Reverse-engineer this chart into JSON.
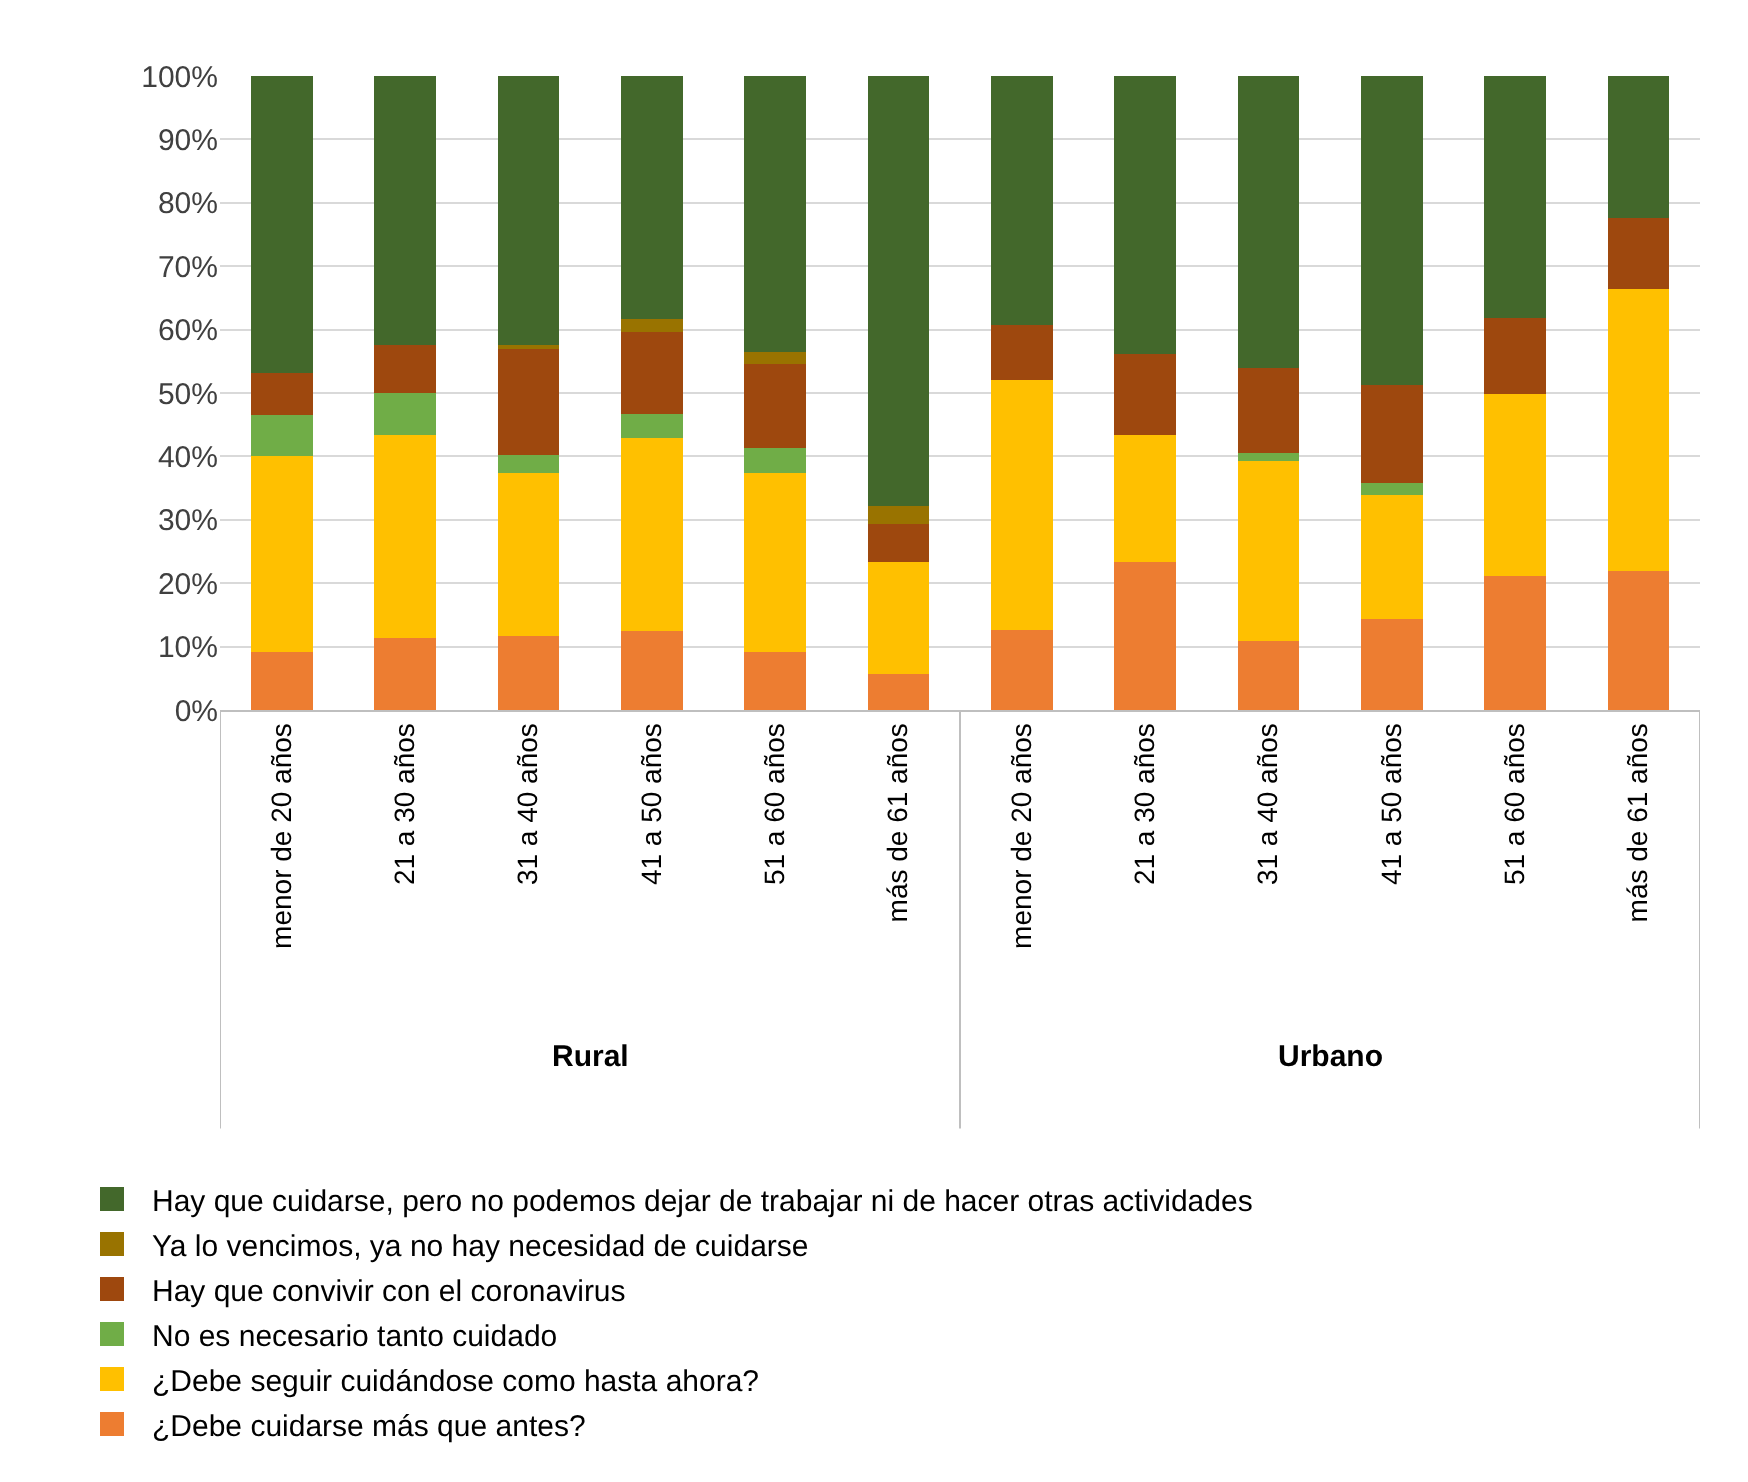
{
  "chart_data": {
    "type": "bar",
    "stacked": true,
    "categories": [
      "menor de 20 años",
      "21 a 30 años",
      "31 a 40 años",
      "41 a 50 años",
      "51 a 60 años",
      "más de 61 años",
      "menor de 20 años",
      "21 a 30 años",
      "31 a 40 años",
      "41 a 50 años",
      "51 a 60 años",
      "más de 61 años"
    ],
    "annotations": [
      "Rural",
      "Urbano"
    ],
    "series": [
      {
        "name": "¿Debe cuidarse más que antes?",
        "color": "#ed7d31",
        "values": [
          9.1,
          11.3,
          11.6,
          12.4,
          9.1,
          5.7,
          12.6,
          23.3,
          10.9,
          14.3,
          21.2,
          22
        ]
      },
      {
        "name": "¿Debe seguir cuidándose como hasta ahora?",
        "color": "#ffc000",
        "values": [
          31,
          32.1,
          25.8,
          30.5,
          28.3,
          17.6,
          39.4,
          20.1,
          28.4,
          19.6,
          28.7,
          44.4
        ]
      },
      {
        "name": "No es necesario tanto cuidado",
        "color": "#70ad47",
        "values": [
          6.5,
          6.6,
          2.8,
          3.8,
          3.9,
          0,
          0,
          0,
          1.3,
          1.9,
          0,
          0
        ]
      },
      {
        "name": "Hay que convivir con el coronavirus",
        "color": "#9e480e",
        "values": [
          6.5,
          7.6,
          16.7,
          13,
          13.3,
          6,
          8.8,
          12.7,
          13.4,
          15.5,
          12,
          11.2
        ]
      },
      {
        "name": "Ya lo vencimos, ya no hay necesidad de cuidarse",
        "color": "#997300",
        "values": [
          0,
          0,
          0.7,
          1.9,
          1.8,
          2.8,
          0,
          0,
          0,
          0,
          0,
          0
        ]
      },
      {
        "name": "Hay que cuidarse, pero no podemos dejar de trabajar ni de hacer otras actividades",
        "color": "#43682b",
        "values": [
          47,
          42.4,
          42.4,
          38.4,
          43.6,
          67.9,
          39.2,
          43.9,
          46,
          48.7,
          38.1,
          22.4
        ]
      }
    ],
    "ylim": [
      0,
      100
    ],
    "yticks": [
      {
        "value": 0,
        "label": "0%"
      },
      {
        "value": 10,
        "label": "10%"
      },
      {
        "value": 20,
        "label": "20%"
      },
      {
        "value": 30,
        "label": "30%"
      },
      {
        "value": 40,
        "label": "40%"
      },
      {
        "value": 50,
        "label": "50%"
      },
      {
        "value": 60,
        "label": "60%"
      },
      {
        "value": 70,
        "label": "70%"
      },
      {
        "value": 80,
        "label": "80%"
      },
      {
        "value": 90,
        "label": "90%"
      },
      {
        "value": 100,
        "label": "100%"
      }
    ],
    "grid": "y",
    "legend": "bottom"
  }
}
